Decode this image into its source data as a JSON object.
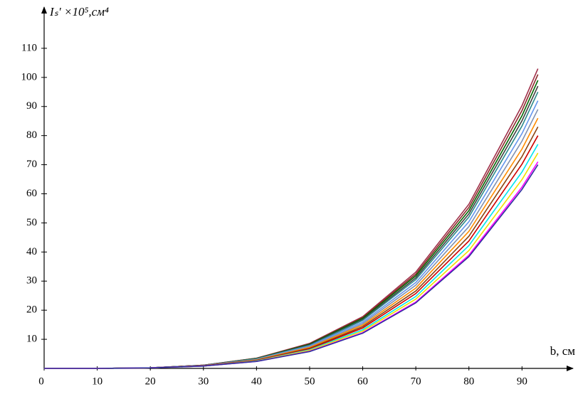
{
  "chart_data": {
    "type": "line",
    "ylabel": "Iₛ′ ×10⁵,см⁴",
    "xlabel": "b, см",
    "x": [
      0,
      10,
      20,
      30,
      40,
      50,
      60,
      70,
      80,
      90,
      93
    ],
    "series": [
      {
        "color": "#a0304a",
        "values": [
          0,
          0,
          0.2,
          1.1,
          3.5,
          8.6,
          17.8,
          33.1,
          56.4,
          90.3,
          103
        ]
      },
      {
        "color": "#8b2a2a",
        "values": [
          0,
          0,
          0.2,
          1.1,
          3.5,
          8.4,
          17.5,
          32.4,
          55.3,
          88.6,
          101
        ]
      },
      {
        "color": "#006400",
        "values": [
          0,
          0,
          0.2,
          1.1,
          3.4,
          8.3,
          17.2,
          31.8,
          54.2,
          86.8,
          99
        ]
      },
      {
        "color": "#404040",
        "values": [
          0,
          0,
          0.2,
          1.1,
          3.3,
          8.1,
          16.8,
          31.1,
          53.1,
          85.1,
          97
        ]
      },
      {
        "color": "#2e8b8b",
        "values": [
          0,
          0,
          0.2,
          1.0,
          3.3,
          7.9,
          16.5,
          30.5,
          52.0,
          83.3,
          95
        ]
      },
      {
        "color": "#6495ed",
        "values": [
          0,
          0,
          0.2,
          1.0,
          3.1,
          7.7,
          15.9,
          29.5,
          50.4,
          80.7,
          92
        ]
      },
      {
        "color": "#8090b0",
        "values": [
          0,
          0,
          0.2,
          1.0,
          3.0,
          7.4,
          15.4,
          28.6,
          48.7,
          78.1,
          89
        ]
      },
      {
        "color": "#ff8c00",
        "values": [
          0,
          0,
          0.2,
          0.9,
          2.9,
          7.2,
          14.9,
          27.6,
          47.1,
          75.4,
          86
        ]
      },
      {
        "color": "#8b4513",
        "values": [
          0,
          0,
          0.2,
          0.9,
          2.8,
          6.9,
          14.4,
          26.6,
          45.4,
          72.8,
          83
        ]
      },
      {
        "color": "#cc0000",
        "values": [
          0,
          0,
          0.2,
          0.9,
          2.7,
          6.7,
          13.9,
          25.7,
          43.8,
          70.2,
          80
        ]
      },
      {
        "color": "#00e5ee",
        "values": [
          0,
          0,
          0.2,
          0.8,
          2.6,
          6.4,
          13.3,
          24.7,
          42.2,
          67.5,
          77
        ]
      },
      {
        "color": "#f0e000",
        "values": [
          0,
          0,
          0.2,
          0.8,
          2.5,
          6.2,
          12.8,
          23.8,
          40.5,
          64.9,
          74
        ]
      },
      {
        "color": "#ff00ff",
        "values": [
          0,
          0,
          0.2,
          0.8,
          2.4,
          5.9,
          12.3,
          22.8,
          38.9,
          62.3,
          71
        ]
      },
      {
        "color": "#3030a0",
        "values": [
          0,
          0,
          0.2,
          0.8,
          2.4,
          5.8,
          12.1,
          22.5,
          38.4,
          61.5,
          70
        ]
      }
    ],
    "xlim": [
      0,
      98
    ],
    "ylim": [
      0,
      120
    ],
    "xticks": [
      0,
      10,
      20,
      30,
      40,
      50,
      60,
      70,
      80,
      90
    ],
    "yticks": [
      10,
      20,
      30,
      40,
      50,
      60,
      70,
      80,
      90,
      100,
      110
    ],
    "grid": false
  }
}
